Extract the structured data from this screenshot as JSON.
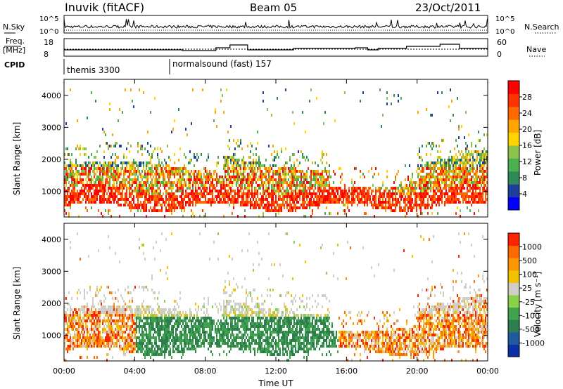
{
  "header": {
    "station": "Inuvik (fitACF)",
    "beam": "Beam 05",
    "date": "23/Oct/2011"
  },
  "strips": {
    "nsky_label": "N.Sky",
    "nsearch_label": "N.Search",
    "nsky_ticks": [
      "10^5",
      "10^0"
    ],
    "nsearch_ticks": [
      "10^5",
      "10^0"
    ],
    "freq_label": [
      "Freq.",
      "[MHz]"
    ],
    "freq_ticks": [
      "18",
      "8"
    ],
    "nave_label": "Nave",
    "nave_ticks": [
      "60",
      "0"
    ],
    "cpid_label": "CPID",
    "cpid_modes": [
      {
        "start_hour": 0,
        "label": "themis 3300"
      },
      {
        "start_hour": 6,
        "label": "normalsound (fast) 157"
      }
    ]
  },
  "colors": {
    "power_scale": [
      "#0000ff",
      "#1f3f9f",
      "#2e8b57",
      "#4caf50",
      "#8bc34a",
      "#ffd400",
      "#ffa500",
      "#ff6a00",
      "#ff3300",
      "#ff0000"
    ],
    "velocity_scale": [
      "#0b2fa8",
      "#1f5aa0",
      "#2e7d4f",
      "#3fa34d",
      "#8bd148",
      "#cfcfc8",
      "#f2c200",
      "#ff9500",
      "#ff6a00",
      "#ff2200"
    ]
  },
  "chart_data": [
    {
      "type": "heatmap",
      "name": "power-panel",
      "ylabel": "Slant Range [km]",
      "yticks": [
        "4000",
        "3000",
        "2000",
        "1000"
      ],
      "ylim": [
        200,
        4500
      ],
      "xlim": [
        0,
        24
      ],
      "colorbar_label": "Power [dB]",
      "colorbar_ticks": [
        "28",
        "24",
        "20",
        "16",
        "12",
        "8",
        "4"
      ],
      "colorbar_range": [
        0,
        32
      ]
    },
    {
      "type": "heatmap",
      "name": "velocity-panel",
      "ylabel": "Slant Range [km]",
      "yticks": [
        "4000",
        "3000",
        "2000",
        "1000"
      ],
      "ylim": [
        200,
        4500
      ],
      "xlim": [
        0,
        24
      ],
      "xlabel": "Time UT",
      "xticks": [
        "00:00",
        "04:00",
        "08:00",
        "12:00",
        "16:00",
        "20:00",
        "00:00"
      ],
      "colorbar_label": "Velocity [m s⁻¹]",
      "colorbar_ticks": [
        "1000",
        "500",
        "100",
        "25",
        "-25",
        "-100",
        "-500",
        "-1000"
      ]
    }
  ]
}
